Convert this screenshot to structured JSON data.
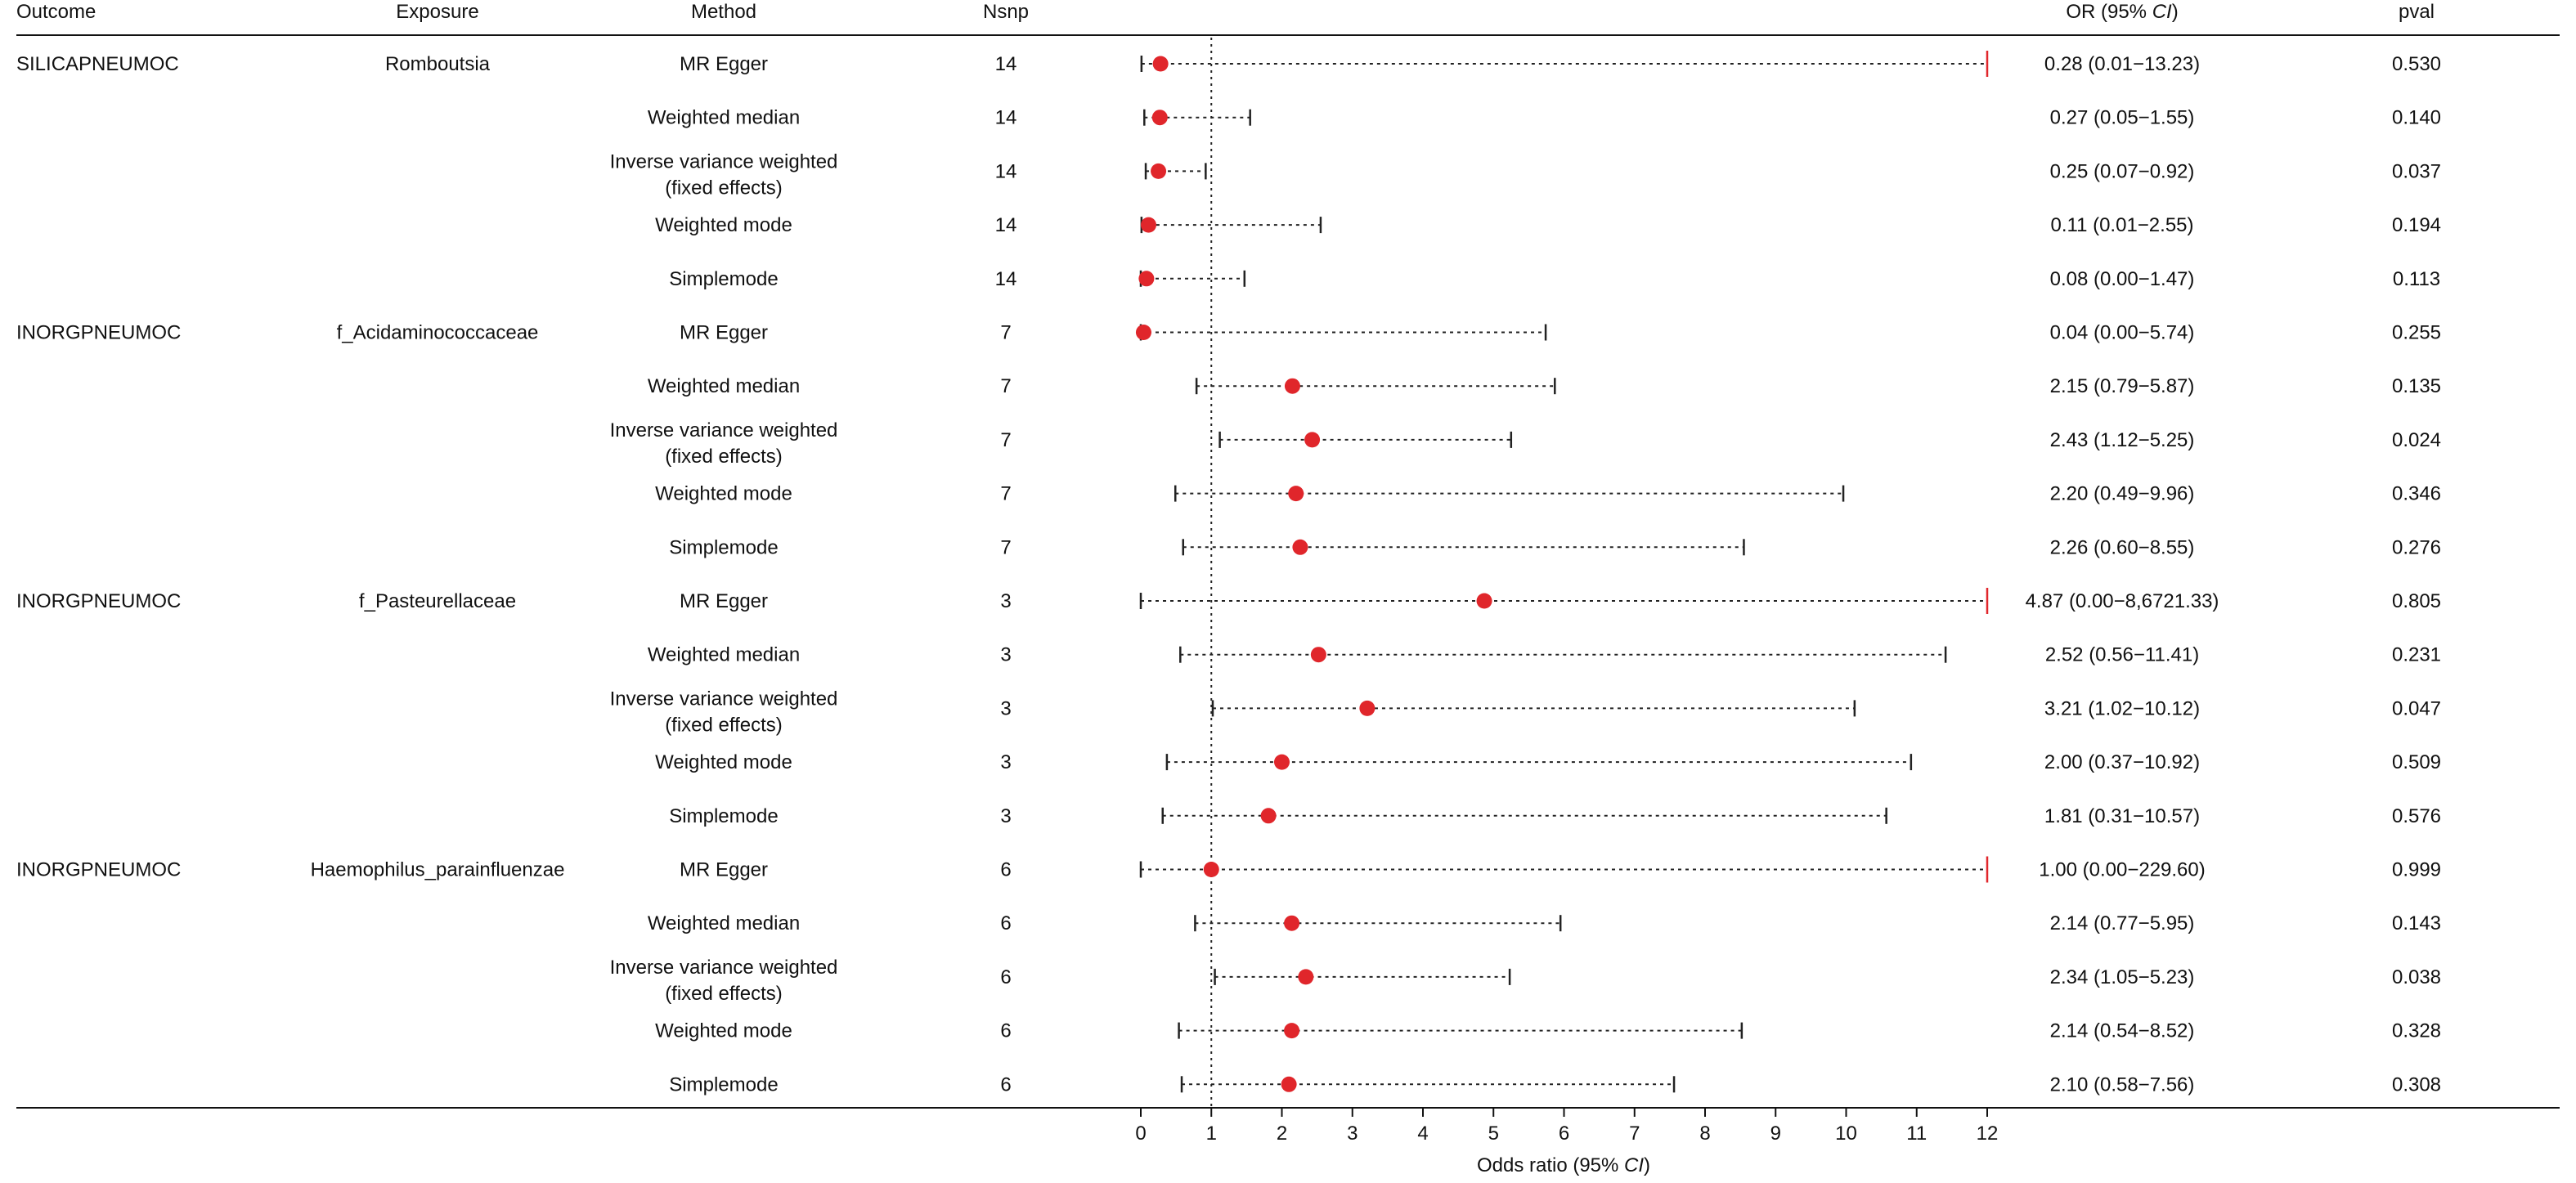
{
  "chart_data": {
    "type": "forest",
    "columns": {
      "outcome": "Outcome",
      "exposure": "Exposure",
      "method": "Method",
      "nsnp": "Nsnp",
      "or_prefix": "OR (95% ",
      "or_ci": "CI",
      "or_suffix": ")",
      "pval": "pval"
    },
    "xaxis": {
      "label_prefix": "Odds ratio (95% ",
      "label_ci": "CI",
      "label_suffix": ")",
      "xlim": [
        0,
        12
      ],
      "ticks": [
        0,
        1,
        2,
        3,
        4,
        5,
        6,
        7,
        8,
        9,
        10,
        11,
        12
      ],
      "reference_line": 1
    },
    "colors": {
      "point": "#e0262b",
      "clipped_arrow": "#e0262b",
      "ci_line": "#222222",
      "reference": "#222222",
      "text": "#111111"
    },
    "rows": [
      {
        "outcome": "SILICAPNEUMOC",
        "exposure": "Romboutsia",
        "method": [
          "MR Egger"
        ],
        "nsnp": "14",
        "or": 0.28,
        "lower": 0.01,
        "upper": 13.23,
        "or_text": "0.28 (0.01−13.23)",
        "pval": "0.530",
        "clipped": true
      },
      {
        "outcome": "",
        "exposure": "",
        "method": [
          "Weighted median"
        ],
        "nsnp": "14",
        "or": 0.27,
        "lower": 0.05,
        "upper": 1.55,
        "or_text": "0.27 (0.05−1.55)",
        "pval": "0.140",
        "clipped": false
      },
      {
        "outcome": "",
        "exposure": "",
        "method": [
          "Inverse variance weighted",
          "(fixed effects)"
        ],
        "nsnp": "14",
        "or": 0.25,
        "lower": 0.07,
        "upper": 0.92,
        "or_text": "0.25 (0.07−0.92)",
        "pval": "0.037",
        "clipped": false
      },
      {
        "outcome": "",
        "exposure": "",
        "method": [
          "Weighted mode"
        ],
        "nsnp": "14",
        "or": 0.11,
        "lower": 0.01,
        "upper": 2.55,
        "or_text": "0.11 (0.01−2.55)",
        "pval": "0.194",
        "clipped": false
      },
      {
        "outcome": "",
        "exposure": "",
        "method": [
          "Simplemode"
        ],
        "nsnp": "14",
        "or": 0.08,
        "lower": 0.0,
        "upper": 1.47,
        "or_text": "0.08 (0.00−1.47)",
        "pval": "0.113",
        "clipped": false
      },
      {
        "outcome": "INORGPNEUMOC",
        "exposure": "f_Acidaminococcaceae",
        "method": [
          "MR Egger"
        ],
        "nsnp": "7",
        "or": 0.04,
        "lower": 0.0,
        "upper": 5.74,
        "or_text": "0.04 (0.00−5.74)",
        "pval": "0.255",
        "clipped": false
      },
      {
        "outcome": "",
        "exposure": "",
        "method": [
          "Weighted median"
        ],
        "nsnp": "7",
        "or": 2.15,
        "lower": 0.79,
        "upper": 5.87,
        "or_text": "2.15 (0.79−5.87)",
        "pval": "0.135",
        "clipped": false
      },
      {
        "outcome": "",
        "exposure": "",
        "method": [
          "Inverse variance weighted",
          "(fixed effects)"
        ],
        "nsnp": "7",
        "or": 2.43,
        "lower": 1.12,
        "upper": 5.25,
        "or_text": "2.43 (1.12−5.25)",
        "pval": "0.024",
        "clipped": false
      },
      {
        "outcome": "",
        "exposure": "",
        "method": [
          "Weighted mode"
        ],
        "nsnp": "7",
        "or": 2.2,
        "lower": 0.49,
        "upper": 9.96,
        "or_text": "2.20 (0.49−9.96)",
        "pval": "0.346",
        "clipped": false
      },
      {
        "outcome": "",
        "exposure": "",
        "method": [
          "Simplemode"
        ],
        "nsnp": "7",
        "or": 2.26,
        "lower": 0.6,
        "upper": 8.55,
        "or_text": "2.26 (0.60−8.55)",
        "pval": "0.276",
        "clipped": false
      },
      {
        "outcome": "INORGPNEUMOC",
        "exposure": "f_Pasteurellaceae",
        "method": [
          "MR Egger"
        ],
        "nsnp": "3",
        "or": 4.87,
        "lower": 0.0,
        "upper": 86721.33,
        "or_text": "4.87 (0.00−8,6721.33)",
        "pval": "0.805",
        "clipped": true
      },
      {
        "outcome": "",
        "exposure": "",
        "method": [
          "Weighted median"
        ],
        "nsnp": "3",
        "or": 2.52,
        "lower": 0.56,
        "upper": 11.41,
        "or_text": "2.52 (0.56−11.41)",
        "pval": "0.231",
        "clipped": false
      },
      {
        "outcome": "",
        "exposure": "",
        "method": [
          "Inverse variance weighted",
          "(fixed effects)"
        ],
        "nsnp": "3",
        "or": 3.21,
        "lower": 1.02,
        "upper": 10.12,
        "or_text": "3.21 (1.02−10.12)",
        "pval": "0.047",
        "clipped": false
      },
      {
        "outcome": "",
        "exposure": "",
        "method": [
          "Weighted mode"
        ],
        "nsnp": "3",
        "or": 2.0,
        "lower": 0.37,
        "upper": 10.92,
        "or_text": "2.00 (0.37−10.92)",
        "pval": "0.509",
        "clipped": false
      },
      {
        "outcome": "",
        "exposure": "",
        "method": [
          "Simplemode"
        ],
        "nsnp": "3",
        "or": 1.81,
        "lower": 0.31,
        "upper": 10.57,
        "or_text": "1.81 (0.31−10.57)",
        "pval": "0.576",
        "clipped": false
      },
      {
        "outcome": "INORGPNEUMOC",
        "exposure": "Haemophilus_parainfluenzae",
        "method": [
          "MR Egger"
        ],
        "nsnp": "6",
        "or": 1.0,
        "lower": 0.0,
        "upper": 229.6,
        "or_text": "1.00 (0.00−229.60)",
        "pval": "0.999",
        "clipped": true
      },
      {
        "outcome": "",
        "exposure": "",
        "method": [
          "Weighted median"
        ],
        "nsnp": "6",
        "or": 2.14,
        "lower": 0.77,
        "upper": 5.95,
        "or_text": "2.14 (0.77−5.95)",
        "pval": "0.143",
        "clipped": false
      },
      {
        "outcome": "",
        "exposure": "",
        "method": [
          "Inverse variance weighted",
          "(fixed effects)"
        ],
        "nsnp": "6",
        "or": 2.34,
        "lower": 1.05,
        "upper": 5.23,
        "or_text": "2.34 (1.05−5.23)",
        "pval": "0.038",
        "clipped": false
      },
      {
        "outcome": "",
        "exposure": "",
        "method": [
          "Weighted mode"
        ],
        "nsnp": "6",
        "or": 2.14,
        "lower": 0.54,
        "upper": 8.52,
        "or_text": "2.14 (0.54−8.52)",
        "pval": "0.328",
        "clipped": false
      },
      {
        "outcome": "",
        "exposure": "",
        "method": [
          "Simplemode"
        ],
        "nsnp": "6",
        "or": 2.1,
        "lower": 0.58,
        "upper": 7.56,
        "or_text": "2.10 (0.58−7.56)",
        "pval": "0.308",
        "clipped": false
      }
    ]
  }
}
